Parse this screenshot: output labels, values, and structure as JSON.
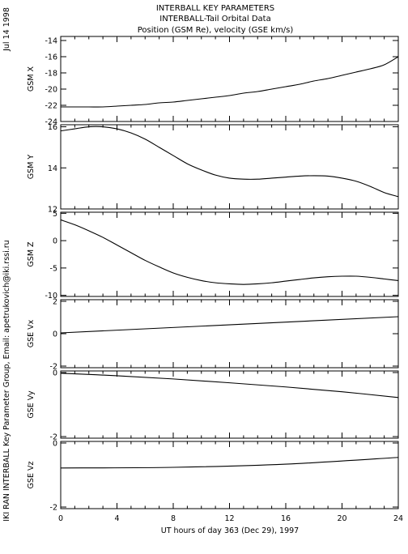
{
  "header": {
    "title_lines": [
      "INTERBALL KEY PARAMETERS",
      "INTERBALL-Tail Orbital Data",
      "Position (GSM Re), velocity (GSE km/s)"
    ],
    "date_label": "Jul 14 1998",
    "credit": "IKI RAN INTERBALL Key Parameter Group, Email: apetrukovich@iki.rssi.ru"
  },
  "chart_data": [
    {
      "type": "line",
      "ylabel": "GSM X",
      "ylim": [
        -24,
        -13.5
      ],
      "yticks": [
        -14,
        -16,
        -18,
        -20,
        -22,
        -24
      ],
      "x": [
        0,
        1,
        2,
        3,
        4,
        5,
        6,
        7,
        8,
        9,
        10,
        11,
        12,
        13,
        14,
        15,
        16,
        17,
        18,
        19,
        20,
        21,
        22,
        23,
        24
      ],
      "series": [
        {
          "values": [
            -22.2,
            -22.2,
            -22.2,
            -22.2,
            -22.1,
            -22.0,
            -21.9,
            -21.7,
            -21.6,
            -21.4,
            -21.2,
            -21.0,
            -20.8,
            -20.5,
            -20.3,
            -20.0,
            -19.7,
            -19.4,
            -19.0,
            -18.7,
            -18.3,
            -17.9,
            -17.5,
            -17.0,
            -16.0
          ]
        }
      ]
    },
    {
      "type": "line",
      "ylabel": "GSM Y",
      "ylim": [
        12,
        16.1
      ],
      "yticks": [
        16,
        14,
        12
      ],
      "x": [
        0,
        1,
        2,
        3,
        4,
        5,
        6,
        7,
        8,
        9,
        10,
        11,
        12,
        13,
        14,
        15,
        16,
        17,
        18,
        19,
        20,
        21,
        22,
        23,
        24
      ],
      "series": [
        {
          "values": [
            15.8,
            15.9,
            16.0,
            16.0,
            15.9,
            15.7,
            15.4,
            15.0,
            14.6,
            14.2,
            13.9,
            13.65,
            13.5,
            13.45,
            13.45,
            13.5,
            13.55,
            13.6,
            13.62,
            13.6,
            13.5,
            13.35,
            13.1,
            12.8,
            12.6
          ]
        }
      ]
    },
    {
      "type": "line",
      "ylabel": "GSM Z",
      "ylim": [
        -10.2,
        5.2
      ],
      "yticks": [
        5,
        0,
        -5,
        -10
      ],
      "x": [
        0,
        1,
        2,
        3,
        4,
        5,
        6,
        7,
        8,
        9,
        10,
        11,
        12,
        13,
        14,
        15,
        16,
        17,
        18,
        19,
        20,
        21,
        22,
        23,
        24
      ],
      "series": [
        {
          "values": [
            3.8,
            2.9,
            1.8,
            0.6,
            -0.8,
            -2.2,
            -3.6,
            -4.8,
            -5.9,
            -6.7,
            -7.3,
            -7.7,
            -7.9,
            -8.0,
            -7.9,
            -7.7,
            -7.4,
            -7.1,
            -6.8,
            -6.6,
            -6.5,
            -6.5,
            -6.7,
            -7.0,
            -7.3
          ]
        }
      ]
    },
    {
      "type": "line",
      "ylabel": "GSE Vx",
      "ylim": [
        -2.1,
        2.1
      ],
      "yticks": [
        2,
        0,
        -2
      ],
      "x": [
        0,
        24
      ],
      "series": [
        {
          "values": [
            0.05,
            1.05
          ]
        }
      ]
    },
    {
      "type": "line",
      "ylabel": "GSE Vy",
      "ylim": [
        -2.05,
        0.05
      ],
      "yticks": [
        0,
        -2
      ],
      "x": [
        0,
        4,
        8,
        12,
        16,
        20,
        24
      ],
      "series": [
        {
          "values": [
            -0.02,
            -0.1,
            -0.2,
            -0.32,
            -0.45,
            -0.6,
            -0.78
          ]
        }
      ]
    },
    {
      "type": "line",
      "ylabel": "GSE Vz",
      "ylim": [
        -2.05,
        0.05
      ],
      "yticks": [
        0,
        -2
      ],
      "x": [
        0,
        8,
        16,
        24
      ],
      "series": [
        {
          "values": [
            -0.78,
            -0.76,
            -0.66,
            -0.45
          ]
        }
      ]
    }
  ],
  "xaxis": {
    "xlim": [
      0,
      24
    ],
    "ticks": [
      0,
      4,
      8,
      12,
      16,
      20,
      24
    ],
    "xlabel": "UT hours of day 363 (Dec 29), 1997"
  }
}
